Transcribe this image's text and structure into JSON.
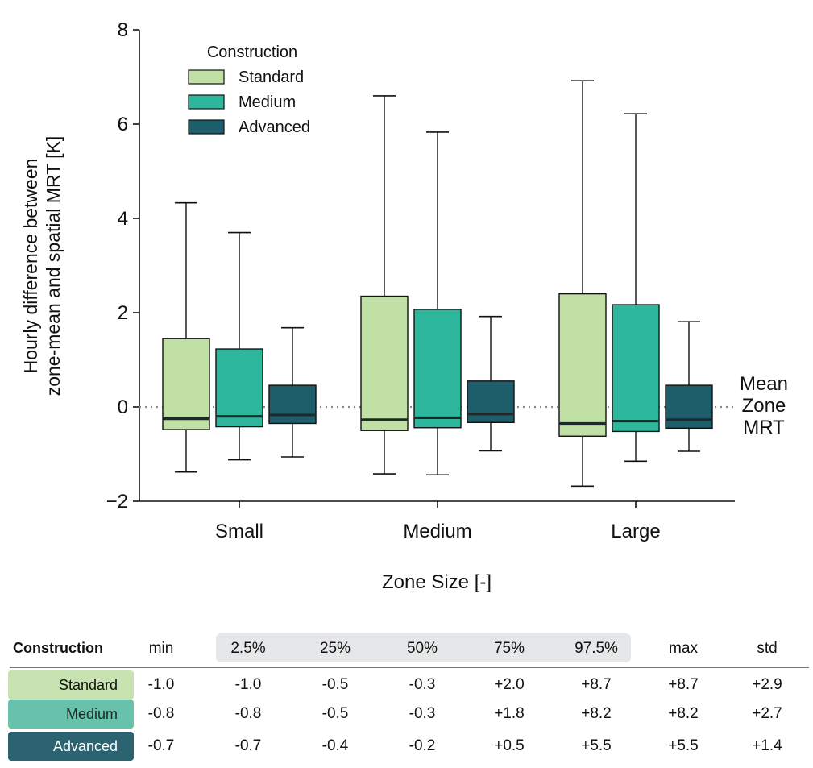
{
  "chart_data": {
    "type": "box",
    "xlabel": "Zone Size [-]",
    "ylabel_lines": [
      "Hourly difference between",
      "zone-mean and spatial MRT [K]"
    ],
    "ylim": [
      -2,
      8
    ],
    "yticks": [
      -2,
      0,
      2,
      4,
      6,
      8
    ],
    "ytick_labels": [
      "−2",
      "0",
      "2",
      "4",
      "6",
      "8"
    ],
    "categories": [
      "Small",
      "Medium",
      "Large"
    ],
    "reference_line": {
      "y": 0,
      "label_lines": [
        "Mean",
        "Zone",
        "MRT"
      ]
    },
    "legend": {
      "title": "Construction",
      "position": "top-left"
    },
    "series": [
      {
        "name": "Standard",
        "color": "#c0e0a6",
        "boxes": [
          {
            "whisker_low": -1.38,
            "q1": -0.48,
            "median": -0.25,
            "q3": 1.45,
            "whisker_high": 4.33
          },
          {
            "whisker_low": -1.42,
            "q1": -0.5,
            "median": -0.27,
            "q3": 2.35,
            "whisker_high": 6.6
          },
          {
            "whisker_low": -1.68,
            "q1": -0.62,
            "median": -0.35,
            "q3": 2.4,
            "whisker_high": 6.92
          }
        ]
      },
      {
        "name": "Medium",
        "color": "#2db89e",
        "boxes": [
          {
            "whisker_low": -1.12,
            "q1": -0.42,
            "median": -0.2,
            "q3": 1.23,
            "whisker_high": 3.7
          },
          {
            "whisker_low": -1.44,
            "q1": -0.44,
            "median": -0.23,
            "q3": 2.07,
            "whisker_high": 5.83
          },
          {
            "whisker_low": -1.15,
            "q1": -0.52,
            "median": -0.3,
            "q3": 2.17,
            "whisker_high": 6.22
          }
        ]
      },
      {
        "name": "Advanced",
        "color": "#1e5e6b",
        "boxes": [
          {
            "whisker_low": -1.06,
            "q1": -0.35,
            "median": -0.17,
            "q3": 0.46,
            "whisker_high": 1.68
          },
          {
            "whisker_low": -0.93,
            "q1": -0.33,
            "median": -0.15,
            "q3": 0.55,
            "whisker_high": 1.92
          },
          {
            "whisker_low": -0.94,
            "q1": -0.45,
            "median": -0.27,
            "q3": 0.46,
            "whisker_high": 1.81
          }
        ]
      }
    ]
  },
  "table": {
    "headers": [
      "Construction",
      "min",
      "2.5%",
      "25%",
      "50%",
      "75%",
      "97.5%",
      "max",
      "std"
    ],
    "rows": [
      {
        "label": "Standard",
        "bg": "#c8e3b1",
        "fg": "#111111",
        "values": [
          "-1.0",
          "-1.0",
          "-0.5",
          "-0.3",
          "+2.0",
          "+8.7",
          "+8.7",
          "+2.9"
        ]
      },
      {
        "label": "Medium",
        "bg": "#66c2aa",
        "fg": "#1a2a2a",
        "values": [
          "-0.8",
          "-0.8",
          "-0.5",
          "-0.3",
          "+1.8",
          "+8.2",
          "+8.2",
          "+2.7"
        ]
      },
      {
        "label": "Advanced",
        "bg": "#2b6470",
        "fg": "#ffffff",
        "values": [
          "-0.7",
          "-0.7",
          "-0.4",
          "-0.2",
          "+0.5",
          "+5.5",
          "+5.5",
          "+1.4"
        ]
      }
    ]
  }
}
